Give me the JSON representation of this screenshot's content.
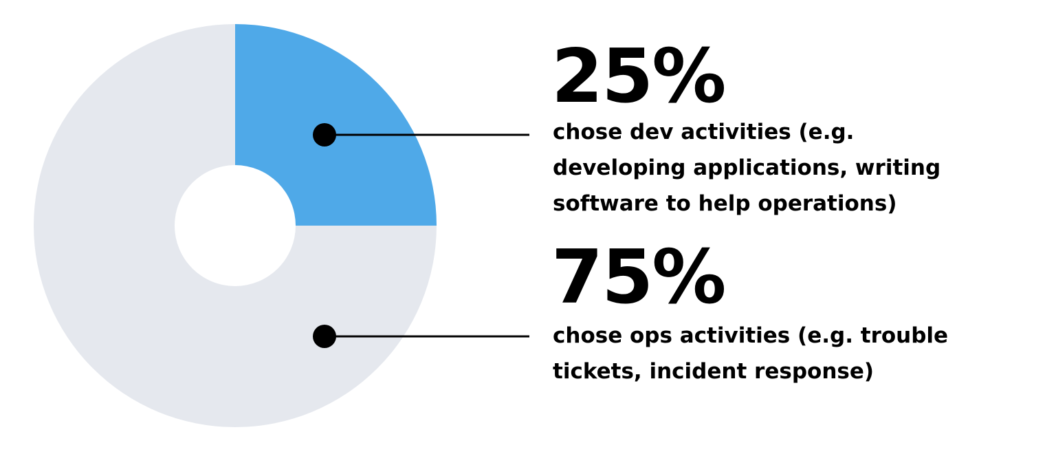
{
  "chart_data": {
    "type": "pie",
    "variant": "donut",
    "slices": [
      {
        "label": "chose dev activities",
        "value": 25,
        "value_text": "25%",
        "description_lines": [
          "chose dev activities (e.g.",
          "developing applications, writing",
          "software to help operations)"
        ],
        "color": "#4FA9E8"
      },
      {
        "label": "chose ops activities",
        "value": 75,
        "value_text": "75%",
        "description_lines": [
          "chose ops activities (e.g. trouble",
          "tickets, incident response)"
        ],
        "color": "#E5E8EE"
      }
    ],
    "legend": "right"
  },
  "colors": {
    "background": "#FFFFFF",
    "text": "#000000",
    "leader": "#000000"
  }
}
